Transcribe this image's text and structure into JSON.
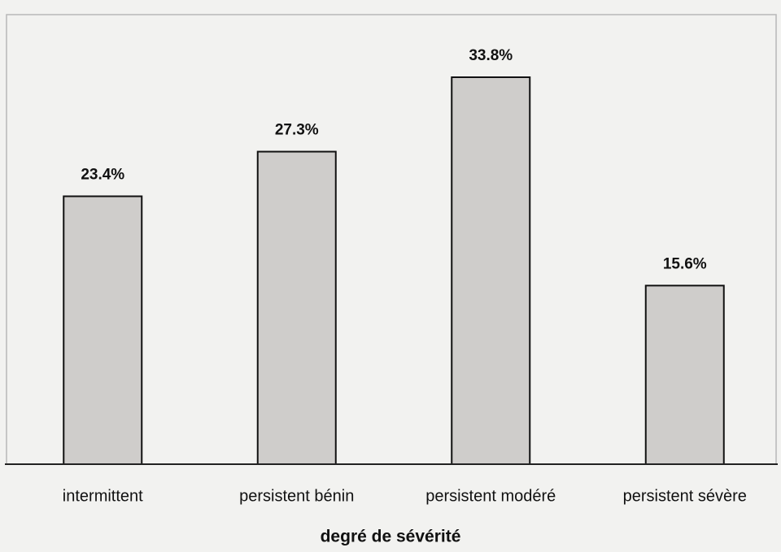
{
  "chart_data": {
    "type": "bar",
    "x_label": "degré de sévérité",
    "categories": [
      "intermittent",
      "persistent bénin",
      "persistent modéré",
      "persistent sévère"
    ],
    "values": [
      23.4,
      27.3,
      33.8,
      15.6
    ],
    "value_labels": [
      "23.4%",
      "27.3%",
      "33.8%",
      "15.6%"
    ],
    "color": "#cfcdcb"
  }
}
